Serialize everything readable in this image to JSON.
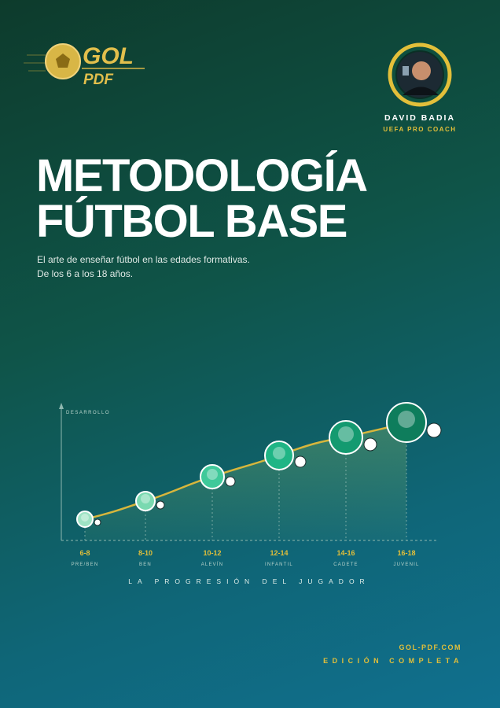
{
  "brand": {
    "name": "GOL",
    "suffix": "PDF"
  },
  "author": {
    "name": "DAVID BADIA",
    "role": "UEFA PRO COACH"
  },
  "title": {
    "line1": "METODOLOGÍA",
    "line2": "FÚTBOL BASE"
  },
  "subtitle": {
    "line1": "El arte de enseñar fútbol en las edades formativas.",
    "line2": "De los 6 a los 18 años."
  },
  "graphic": {
    "axis_label": "DESARROLLO",
    "stages": [
      {
        "ages": "6-8",
        "name": "PRE/BEN"
      },
      {
        "ages": "8-10",
        "name": "BEN"
      },
      {
        "ages": "10-12",
        "name": "ALEVÍN"
      },
      {
        "ages": "12-14",
        "name": "INFANTIL"
      },
      {
        "ages": "14-16",
        "name": "CADETE"
      },
      {
        "ages": "16-18",
        "name": "JUVENIL"
      }
    ],
    "caption": "LA PROGRESIÓN DEL JUGADOR"
  },
  "footer": {
    "website": "GOL-PDF.COM",
    "edition": "EDICIÓN COMPLETA"
  }
}
